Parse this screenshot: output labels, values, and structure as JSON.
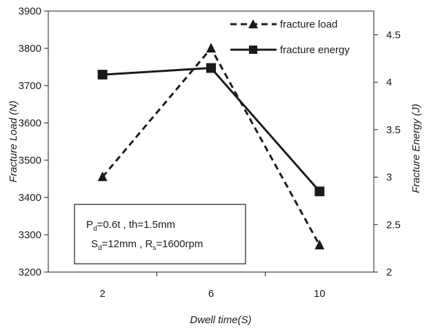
{
  "chart_data": {
    "type": "line",
    "title": "",
    "xlabel": "Dwell time(S)",
    "ylabel": "Fracture Load (N)",
    "y2label": "Fracture Energy (J)",
    "categories": [
      "2",
      "6",
      "10"
    ],
    "ylim": [
      3200,
      3900
    ],
    "yticks": [
      "3200",
      "3300",
      "3400",
      "3500",
      "3600",
      "3700",
      "3800",
      "3900"
    ],
    "y2lim": [
      2,
      4.75
    ],
    "y2ticks": [
      "2",
      "2.5",
      "3",
      "3.5",
      "4",
      "4.5"
    ],
    "series": [
      {
        "name": "fracture load",
        "axis": "left",
        "marker": "triangle",
        "dash": true,
        "values": [
          3455,
          3800,
          3272
        ]
      },
      {
        "name": "fracture energy",
        "axis": "right",
        "marker": "square",
        "dash": false,
        "values": [
          4.08,
          4.15,
          2.85
        ]
      }
    ],
    "legend": "top-right",
    "grid": false,
    "annotation": {
      "line1": {
        "p": "P",
        "p_sub": "d",
        "p_rest": "=0.6t , th=1.5mm"
      },
      "line2": {
        "s": "S",
        "s_sub": "d",
        "s_mid": "=12mm , R",
        "r_sub": "s",
        "r_rest": "=1600rpm"
      }
    }
  }
}
